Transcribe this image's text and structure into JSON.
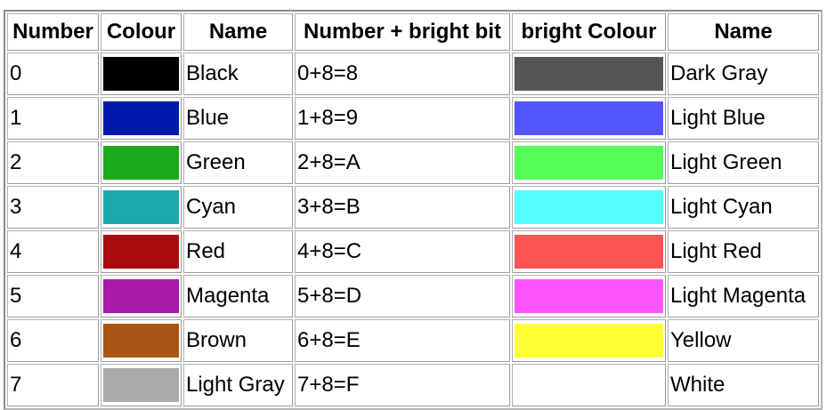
{
  "table": {
    "headers": {
      "number": "Number",
      "colour": "Colour",
      "name": "Name",
      "number_bright": "Number + bright bit",
      "bright_colour": "bright Colour",
      "bright_name": "Name"
    },
    "rows": [
      {
        "number": "0",
        "colour": "#000000",
        "name": "Black",
        "bright_number": "0+8=8",
        "bright_colour": "#555555",
        "bright_name": "Dark Gray"
      },
      {
        "number": "1",
        "colour": "#0019aa",
        "name": "Blue",
        "bright_number": "1+8=9",
        "bright_colour": "#5555ff",
        "bright_name": "Light Blue"
      },
      {
        "number": "2",
        "colour": "#1aaa1a",
        "name": "Green",
        "bright_number": "2+8=A",
        "bright_colour": "#55ff55",
        "bright_name": "Light Green"
      },
      {
        "number": "3",
        "colour": "#1aaaaa",
        "name": "Cyan",
        "bright_number": "3+8=B",
        "bright_colour": "#55ffff",
        "bright_name": "Light Cyan"
      },
      {
        "number": "4",
        "colour": "#aa0a10",
        "name": "Red",
        "bright_number": "4+8=C",
        "bright_colour": "#ff5555",
        "bright_name": "Light Red"
      },
      {
        "number": "5",
        "colour": "#aa1aaa",
        "name": "Magenta",
        "bright_number": "5+8=D",
        "bright_colour": "#ff55ff",
        "bright_name": "Light Magenta"
      },
      {
        "number": "6",
        "colour": "#aa5515",
        "name": "Brown",
        "bright_number": "6+8=E",
        "bright_colour": "#ffff33",
        "bright_name": "Yellow"
      },
      {
        "number": "7",
        "colour": "#aaaaaa",
        "name": "Light Gray",
        "bright_number": "7+8=F",
        "bright_colour": "#ffffff",
        "bright_name": "White"
      }
    ]
  }
}
